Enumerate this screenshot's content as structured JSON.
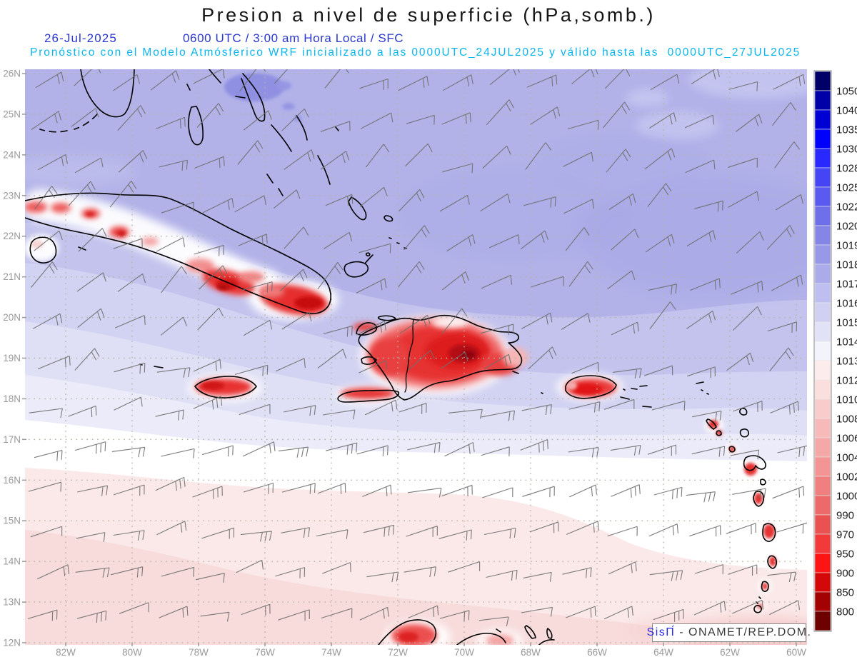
{
  "header": {
    "title": "Presion a nivel de superficie (hPa,somb.)",
    "date": "26-Jul-2025",
    "time_line": "0600 UTC / 3:00 am Hora Local / SFC",
    "forecast_line": "Pronóstico con el Modelo Atmósferico WRF inicializado a las 0000UTC_24JUL2025 y válido hasta las  0000UTC_27JUL2025"
  },
  "axes": {
    "lat_labels": [
      "26N",
      "25N",
      "24N",
      "23N",
      "22N",
      "21N",
      "20N",
      "19N",
      "18N",
      "17N",
      "16N",
      "15N",
      "14N",
      "13N",
      "12N"
    ],
    "lon_labels": [
      "82W",
      "80W",
      "78W",
      "76W",
      "74W",
      "72W",
      "70W",
      "68W",
      "66W",
      "64W",
      "62W",
      "60W"
    ]
  },
  "colorbar": {
    "labels": [
      "1050",
      "1040",
      "1035",
      "1030",
      "1028",
      "1025",
      "1022",
      "1020",
      "1019",
      "1018",
      "1017",
      "1016",
      "1015",
      "1014",
      "1013",
      "1012",
      "1010",
      "1008",
      "1006",
      "1004",
      "1002",
      "1000",
      "990",
      "970",
      "950",
      "900",
      "850",
      "800"
    ],
    "colors": [
      "#000066",
      "#0000a8",
      "#0000d4",
      "#0000ff",
      "#2828ff",
      "#4545f6",
      "#5a5af0",
      "#6f6fea",
      "#8585e6",
      "#9898e8",
      "#ababec",
      "#bebef0",
      "#d0d0f3",
      "#e2e2f7",
      "#f3f3fb",
      "#fdecec",
      "#fbdede",
      "#f9cccc",
      "#f7baba",
      "#f5a8a8",
      "#f39595",
      "#f08080",
      "#ed6a6a",
      "#ea5252",
      "#f23a3a",
      "#fd1414",
      "#d40808",
      "#a30202",
      "#6e0000"
    ]
  },
  "branding": {
    "app": "SisΠ́",
    "rest": " - ONAMET/REP.DOM."
  },
  "colors": {
    "title": "#141414",
    "date_line": "#2a36cf",
    "forecast_line": "#0ab4ef",
    "axis_label": "#9a9a9a",
    "grid_dots": "#b4b4a4",
    "coastline": "#000000",
    "wind_barb": "#6f6f6f",
    "brand_app": "#2a2ae8",
    "brand_rest": "#3a3a3a",
    "colorbar_label": "#1c1c1c",
    "sea_high": "#b2b2e9",
    "sea_low_pink": "#fbe9e9",
    "land_hot_red": "#d01515"
  },
  "chart_data": {
    "type": "heatmap",
    "title": "Presion a nivel de superficie (hPa,somb.)",
    "units": "hPa",
    "model": "WRF",
    "init": "0000UTC_24JUL2025",
    "valid_until": "0000UTC_27JUL2025",
    "valid_at": "26-Jul-2025 0600 UTC / 3:00 am Hora Local / SFC",
    "lat_ticks": [
      "26N",
      "25N",
      "24N",
      "23N",
      "22N",
      "21N",
      "20N",
      "19N",
      "18N",
      "17N",
      "16N",
      "15N",
      "14N",
      "13N",
      "12N"
    ],
    "lon_ticks": [
      "82W",
      "80W",
      "78W",
      "76W",
      "74W",
      "72W",
      "70W",
      "68W",
      "66W",
      "64W",
      "62W",
      "60W"
    ],
    "colorbar_levels": [
      1050,
      1040,
      1035,
      1030,
      1028,
      1025,
      1022,
      1020,
      1019,
      1018,
      1017,
      1016,
      1015,
      1014,
      1013,
      1012,
      1010,
      1008,
      1006,
      1004,
      1002,
      1000,
      990,
      970,
      950,
      900,
      850,
      800
    ],
    "colorbar_colors": [
      "#000066",
      "#0000a8",
      "#0000d4",
      "#0000ff",
      "#2828ff",
      "#4545f6",
      "#5a5af0",
      "#6f6fea",
      "#8585e6",
      "#9898e8",
      "#ababec",
      "#bebef0",
      "#d0d0f3",
      "#e2e2f7",
      "#f3f3fb",
      "#fdecec",
      "#fbdede",
      "#f9cccc",
      "#f7baba",
      "#f5a8a8",
      "#f39595",
      "#f08080",
      "#ed6a6a",
      "#ea5252",
      "#f23a3a",
      "#fd1414",
      "#d40808",
      "#a30202",
      "#6e0000"
    ],
    "legend_position": "right",
    "field_pattern": "Blue/periwinkle shading (≈1016–1020 hPa) across the Atlantic north of the Greater Antilles; white band ≈1013–1014 hPa mid-basin; pale pink ≈1010–1013 hPa toward 12–15N; red low-pressure cores over island terrain of Cuba, Jamaica, Hispaniola, Puerto Rico, the Lesser Antilles and northern South America; easterly trade-wind barbs (≈5–15 kt) over the whole domain"
  }
}
